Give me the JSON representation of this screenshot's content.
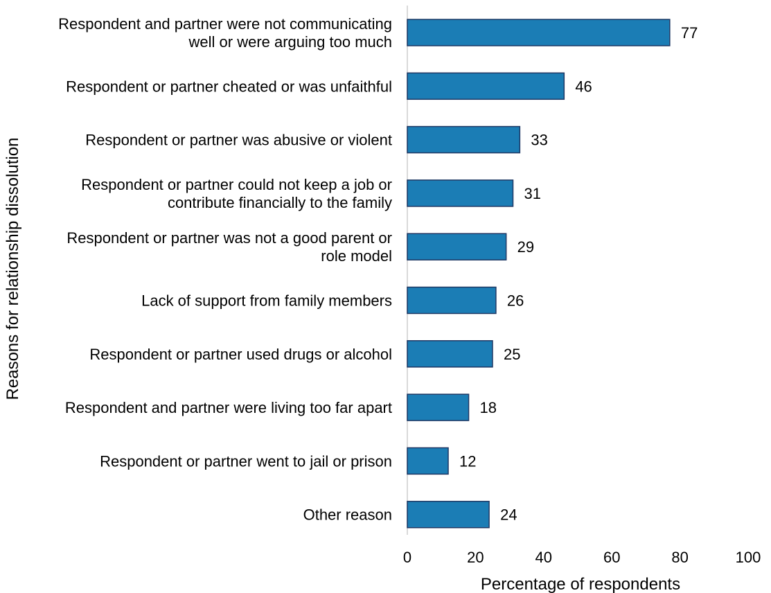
{
  "chart_data": {
    "type": "bar",
    "orientation": "horizontal",
    "title": "",
    "xlabel": "Percentage of respondents",
    "ylabel": "Reasons for relationship dissolution",
    "xlim": [
      0,
      100
    ],
    "xticks": [
      0,
      20,
      40,
      60,
      80,
      100
    ],
    "grid": false,
    "bar_color": "#1b7db5",
    "bar_edge_color": "#1f3864",
    "categories": [
      [
        "Respondent and partner were not communicating",
        "well or were arguing too much"
      ],
      [
        "Respondent or partner cheated or was unfaithful"
      ],
      [
        "Respondent or partner was abusive or violent"
      ],
      [
        "Respondent or partner could not keep a job or",
        "contribute financially to the family"
      ],
      [
        "Respondent or partner was not a good parent or",
        "role model"
      ],
      [
        "Lack of support from family members"
      ],
      [
        "Respondent or partner used drugs or alcohol"
      ],
      [
        "Respondent and partner were living too far apart"
      ],
      [
        "Respondent or partner went to jail or prison"
      ],
      [
        "Other reason"
      ]
    ],
    "values": [
      77,
      46,
      33,
      31,
      29,
      26,
      25,
      18,
      12,
      24
    ]
  }
}
